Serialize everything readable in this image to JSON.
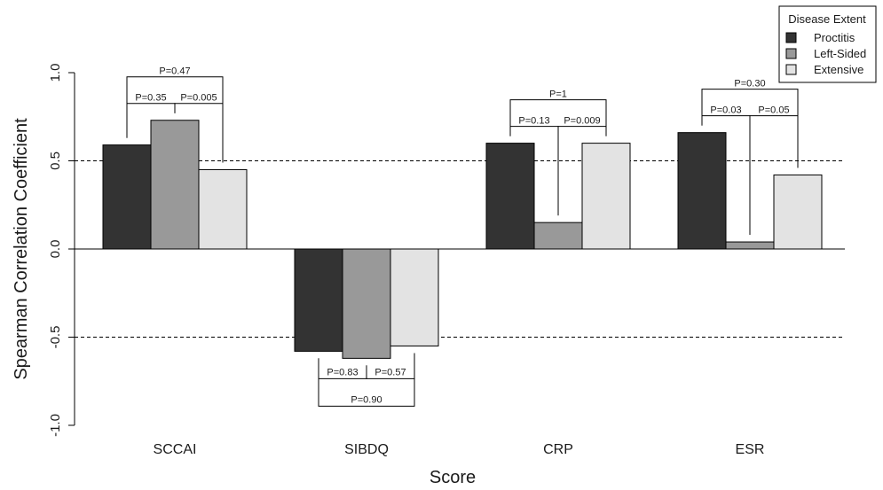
{
  "chart_data": {
    "type": "bar",
    "title": "",
    "xlabel": "Score",
    "ylabel": "Spearman Correlation Coefficient",
    "ylim": [
      -1.0,
      1.0
    ],
    "yticks": [
      "-1.0",
      "-0.5",
      "0.0",
      "0.5",
      "1.0"
    ],
    "reference_lines": [
      0.5,
      -0.5
    ],
    "grid": false,
    "categories": [
      "SCCAI",
      "SIBDQ",
      "CRP",
      "ESR"
    ],
    "series": [
      {
        "name": "Proctitis",
        "color": "#333333",
        "values": [
          0.59,
          -0.58,
          0.6,
          0.66
        ]
      },
      {
        "name": "Left-Sided",
        "color": "#999999",
        "values": [
          0.73,
          -0.62,
          0.15,
          0.04
        ]
      },
      {
        "name": "Extensive",
        "color": "#e3e3e3",
        "values": [
          0.45,
          -0.55,
          0.6,
          0.42
        ]
      }
    ],
    "legend": {
      "title": "Disease Extent",
      "placement": "top-right",
      "entries": [
        "Proctitis",
        "Left-Sided",
        "Extensive"
      ]
    },
    "annotations": [
      {
        "category": "SCCAI",
        "from": 0,
        "to": 1,
        "label": "P=0.35"
      },
      {
        "category": "SCCAI",
        "from": 1,
        "to": 2,
        "label": "P=0.005"
      },
      {
        "category": "SCCAI",
        "from": 0,
        "to": 2,
        "label": "P=0.47"
      },
      {
        "category": "SIBDQ",
        "from": 0,
        "to": 1,
        "label": "P=0.83"
      },
      {
        "category": "SIBDQ",
        "from": 1,
        "to": 2,
        "label": "P=0.57"
      },
      {
        "category": "SIBDQ",
        "from": 0,
        "to": 2,
        "label": "P=0.90"
      },
      {
        "category": "CRP",
        "from": 0,
        "to": 1,
        "label": "P=0.13"
      },
      {
        "category": "CRP",
        "from": 1,
        "to": 2,
        "label": "P=0.009"
      },
      {
        "category": "CRP",
        "from": 0,
        "to": 2,
        "label": "P=1"
      },
      {
        "category": "ESR",
        "from": 0,
        "to": 1,
        "label": "P=0.03"
      },
      {
        "category": "ESR",
        "from": 1,
        "to": 2,
        "label": "P=0.05"
      },
      {
        "category": "ESR",
        "from": 0,
        "to": 2,
        "label": "P=0.30"
      }
    ]
  }
}
